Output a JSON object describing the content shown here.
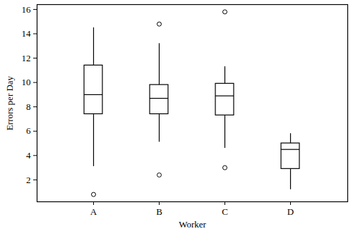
{
  "chart_data": {
    "type": "box",
    "x_label": "Worker",
    "y_label": "Errors per Day",
    "categories": [
      "A",
      "B",
      "C",
      "D"
    ],
    "boxes": [
      {
        "whisker_low": 3.1,
        "q1": 7.4,
        "median": 9.0,
        "q3": 11.4,
        "whisker_high": 14.5,
        "outliers": [
          0.8
        ]
      },
      {
        "whisker_low": 5.1,
        "q1": 7.4,
        "median": 8.7,
        "q3": 9.8,
        "whisker_high": 13.2,
        "outliers": [
          2.4,
          14.8
        ]
      },
      {
        "whisker_low": 4.6,
        "q1": 7.3,
        "median": 8.9,
        "q3": 9.9,
        "whisker_high": 11.3,
        "outliers": [
          3.0,
          15.8
        ]
      },
      {
        "whisker_low": 1.2,
        "q1": 2.9,
        "median": 4.5,
        "q3": 5.0,
        "whisker_high": 5.8,
        "outliers": []
      }
    ],
    "color": "#000000",
    "ylim": [
      0.2,
      16.4
    ],
    "yticks": [
      2,
      4,
      6,
      8,
      10,
      12,
      14,
      16
    ],
    "grid": false
  }
}
